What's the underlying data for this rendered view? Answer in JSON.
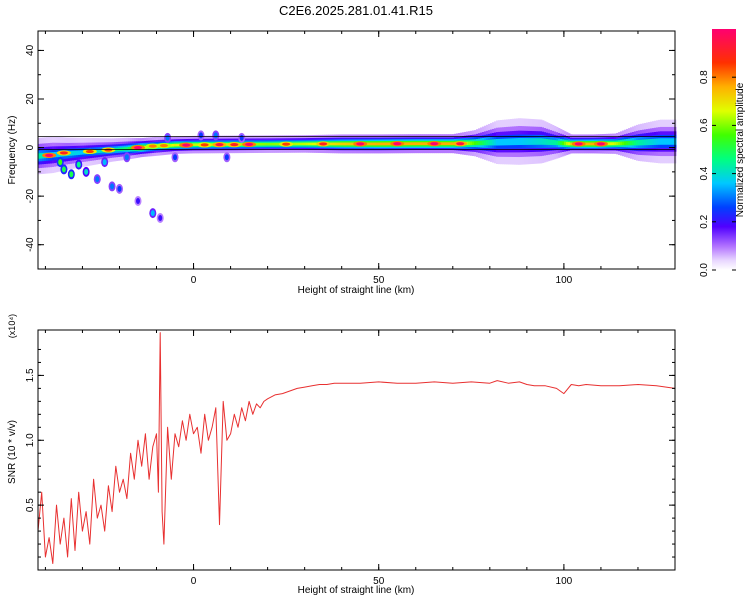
{
  "title": "C2E6.2025.281.01.41.R15",
  "chart_data": [
    {
      "type": "heatmap",
      "title": "C2E6.2025.281.01.41.R15",
      "xlabel": "Height of straight line (km)",
      "ylabel": "Frequency (Hz)",
      "xlim": [
        -42,
        130
      ],
      "ylim": [
        -50,
        48
      ],
      "xticks": [
        0,
        50,
        100
      ],
      "xtick_labels": [
        "0",
        "50",
        "100"
      ],
      "yticks": [
        40,
        20,
        0,
        -20,
        -40
      ],
      "ytick_labels": [
        "40",
        "20",
        "0",
        "-20",
        "-40"
      ],
      "ridge": [
        {
          "x": -42,
          "f": -3.5,
          "w": 2.5,
          "a": 0.55
        },
        {
          "x": -38,
          "f": -3.0,
          "w": 2.5,
          "a": 0.45
        },
        {
          "x": -34,
          "f": -2.5,
          "w": 2.2,
          "a": 0.5
        },
        {
          "x": -30,
          "f": -2.0,
          "w": 2.0,
          "a": 0.45
        },
        {
          "x": -26,
          "f": -1.5,
          "w": 1.8,
          "a": 0.5
        },
        {
          "x": -22,
          "f": -1.0,
          "w": 1.6,
          "a": 0.55
        },
        {
          "x": -18,
          "f": -0.5,
          "w": 1.5,
          "a": 0.6
        },
        {
          "x": -14,
          "f": 0.0,
          "w": 1.3,
          "a": 0.9
        },
        {
          "x": -10,
          "f": 0.5,
          "w": 1.3,
          "a": 0.7
        },
        {
          "x": -5,
          "f": 1.0,
          "w": 1.2,
          "a": 0.85
        },
        {
          "x": 0,
          "f": 1.2,
          "w": 1.2,
          "a": 0.8
        },
        {
          "x": 10,
          "f": 1.3,
          "w": 1.2,
          "a": 0.8
        },
        {
          "x": 20,
          "f": 1.4,
          "w": 1.2,
          "a": 0.75
        },
        {
          "x": 30,
          "f": 1.5,
          "w": 1.2,
          "a": 0.8
        },
        {
          "x": 40,
          "f": 1.5,
          "w": 1.3,
          "a": 0.9
        },
        {
          "x": 50,
          "f": 1.5,
          "w": 1.3,
          "a": 0.95
        },
        {
          "x": 60,
          "f": 1.6,
          "w": 1.3,
          "a": 0.95
        },
        {
          "x": 70,
          "f": 1.6,
          "w": 1.3,
          "a": 0.95
        },
        {
          "x": 76,
          "f": 1.8,
          "w": 1.8,
          "a": 0.7
        },
        {
          "x": 82,
          "f": 2.2,
          "w": 3.0,
          "a": 0.45
        },
        {
          "x": 88,
          "f": 2.5,
          "w": 3.2,
          "a": 0.45
        },
        {
          "x": 94,
          "f": 2.5,
          "w": 3.0,
          "a": 0.5
        },
        {
          "x": 98,
          "f": 2.0,
          "w": 2.2,
          "a": 0.55
        },
        {
          "x": 102,
          "f": 1.5,
          "w": 1.3,
          "a": 0.9
        },
        {
          "x": 108,
          "f": 1.5,
          "w": 1.3,
          "a": 0.95
        },
        {
          "x": 114,
          "f": 1.6,
          "w": 1.4,
          "a": 0.8
        },
        {
          "x": 120,
          "f": 2.0,
          "w": 2.5,
          "a": 0.55
        },
        {
          "x": 126,
          "f": 2.5,
          "w": 3.0,
          "a": 0.45
        },
        {
          "x": 130,
          "f": 2.5,
          "w": 3.0,
          "a": 0.45
        }
      ],
      "hot_spots": [
        {
          "x": -39,
          "f": -3.2,
          "a": 1.0
        },
        {
          "x": -35,
          "f": -2.2,
          "a": 0.9
        },
        {
          "x": -28,
          "f": -1.6,
          "a": 0.85
        },
        {
          "x": -23,
          "f": -1.0,
          "a": 0.85
        },
        {
          "x": -15,
          "f": 0.0,
          "a": 1.0
        },
        {
          "x": -11,
          "f": 0.6,
          "a": 0.8
        },
        {
          "x": -8,
          "f": 0.8,
          "a": 0.8
        },
        {
          "x": -2,
          "f": 1.0,
          "a": 1.0
        },
        {
          "x": 3,
          "f": 1.1,
          "a": 0.85
        },
        {
          "x": 7,
          "f": 1.2,
          "a": 0.95
        },
        {
          "x": 11,
          "f": 1.2,
          "a": 0.9
        },
        {
          "x": 15,
          "f": 1.3,
          "a": 1.0
        },
        {
          "x": 25,
          "f": 1.4,
          "a": 0.85
        },
        {
          "x": 35,
          "f": 1.5,
          "a": 0.9
        },
        {
          "x": 45,
          "f": 1.5,
          "a": 1.0
        },
        {
          "x": 55,
          "f": 1.6,
          "a": 1.0
        },
        {
          "x": 65,
          "f": 1.6,
          "a": 1.0
        },
        {
          "x": 72,
          "f": 1.6,
          "a": 0.95
        },
        {
          "x": 104,
          "f": 1.5,
          "a": 1.0
        },
        {
          "x": 110,
          "f": 1.5,
          "a": 1.0
        }
      ],
      "blobs": [
        {
          "x": -36,
          "f": -6,
          "a": 0.55
        },
        {
          "x": -35,
          "f": -9,
          "a": 0.5
        },
        {
          "x": -33,
          "f": -11,
          "a": 0.5
        },
        {
          "x": -31,
          "f": -7,
          "a": 0.45
        },
        {
          "x": -29,
          "f": -10,
          "a": 0.4
        },
        {
          "x": -26,
          "f": -13,
          "a": 0.3
        },
        {
          "x": -24,
          "f": -6,
          "a": 0.35
        },
        {
          "x": -22,
          "f": -16,
          "a": 0.3
        },
        {
          "x": -20,
          "f": -17,
          "a": 0.25
        },
        {
          "x": -18,
          "f": -4,
          "a": 0.3
        },
        {
          "x": -15,
          "f": -22,
          "a": 0.2
        },
        {
          "x": -11,
          "f": -27,
          "a": 0.35
        },
        {
          "x": -9,
          "f": -29,
          "a": 0.2
        },
        {
          "x": -7,
          "f": 4,
          "a": 0.3
        },
        {
          "x": -5,
          "f": -4,
          "a": 0.25
        },
        {
          "x": 2,
          "f": 5,
          "a": 0.25
        },
        {
          "x": 6,
          "f": 5,
          "a": 0.3
        },
        {
          "x": 9,
          "f": -4,
          "a": 0.25
        },
        {
          "x": 13,
          "f": 4,
          "a": 0.25
        }
      ],
      "colorbar": {
        "label": "Normalized spectral amplitude",
        "range": [
          0,
          1
        ],
        "ticks": [
          0.0,
          0.2,
          0.4,
          0.6,
          0.8
        ],
        "tick_labels": [
          "0.0",
          "0.2",
          "0.4",
          "0.6",
          "0.8"
        ],
        "stops": [
          {
            "v": 0.0,
            "color": "#ffffff"
          },
          {
            "v": 0.04,
            "color": "#e8d6ff"
          },
          {
            "v": 0.1,
            "color": "#b070ff"
          },
          {
            "v": 0.18,
            "color": "#5000ff"
          },
          {
            "v": 0.26,
            "color": "#0040ff"
          },
          {
            "v": 0.36,
            "color": "#00c8ff"
          },
          {
            "v": 0.46,
            "color": "#00ff80"
          },
          {
            "v": 0.56,
            "color": "#40ff00"
          },
          {
            "v": 0.66,
            "color": "#e0ff00"
          },
          {
            "v": 0.76,
            "color": "#ffb000"
          },
          {
            "v": 0.86,
            "color": "#ff3000"
          },
          {
            "v": 1.0,
            "color": "#ff0070"
          }
        ]
      }
    },
    {
      "type": "line",
      "xlabel": "Height of straight line (km)",
      "ylabel": "SNR (10 * v/v)",
      "y_multiplier": "(x10⁴)",
      "xlim": [
        -42,
        130
      ],
      "ylim": [
        0.0,
        1.85
      ],
      "xticks": [
        0,
        50,
        100
      ],
      "xtick_labels": [
        "0",
        "50",
        "100"
      ],
      "yticks": [
        0.5,
        1.0,
        1.5
      ],
      "ytick_labels": [
        "0.5",
        "1.0",
        "1.5"
      ],
      "color": "#e83030",
      "x": [
        -42,
        -41,
        -40,
        -39,
        -38,
        -37,
        -36,
        -35,
        -34,
        -33,
        -32,
        -31,
        -30,
        -29,
        -28,
        -27,
        -26,
        -25,
        -24,
        -23,
        -22,
        -21,
        -20,
        -19,
        -18,
        -17,
        -16,
        -15,
        -14,
        -13,
        -12,
        -11,
        -10,
        -9.5,
        -9,
        -8.5,
        -8,
        -7,
        -6,
        -5,
        -4,
        -3,
        -2,
        -1,
        0,
        1,
        2,
        3,
        4,
        5,
        6,
        7,
        8,
        9,
        10,
        11,
        12,
        13,
        14,
        15,
        16,
        17,
        18,
        19,
        20,
        22,
        24,
        26,
        28,
        30,
        32,
        34,
        36,
        38,
        40,
        45,
        50,
        55,
        60,
        65,
        70,
        75,
        80,
        82,
        85,
        88,
        90,
        92,
        95,
        98,
        100,
        102,
        104,
        106,
        110,
        115,
        120,
        125,
        130
      ],
      "y": [
        0.3,
        0.6,
        0.1,
        0.25,
        0.05,
        0.5,
        0.2,
        0.4,
        0.1,
        0.55,
        0.15,
        0.6,
        0.3,
        0.45,
        0.2,
        0.7,
        0.4,
        0.5,
        0.3,
        0.65,
        0.45,
        0.8,
        0.6,
        0.7,
        0.55,
        0.9,
        0.7,
        1.0,
        0.8,
        1.05,
        0.7,
        0.95,
        1.05,
        0.6,
        1.83,
        0.45,
        0.2,
        1.1,
        0.7,
        1.05,
        0.95,
        1.15,
        1.0,
        1.2,
        1.05,
        1.1,
        0.9,
        1.2,
        1.0,
        1.1,
        1.25,
        0.35,
        1.3,
        1.0,
        1.05,
        1.2,
        1.1,
        1.25,
        1.15,
        1.3,
        1.2,
        1.28,
        1.25,
        1.3,
        1.32,
        1.35,
        1.36,
        1.38,
        1.4,
        1.41,
        1.42,
        1.43,
        1.43,
        1.44,
        1.44,
        1.44,
        1.45,
        1.44,
        1.44,
        1.45,
        1.44,
        1.45,
        1.44,
        1.46,
        1.44,
        1.45,
        1.43,
        1.42,
        1.42,
        1.4,
        1.36,
        1.43,
        1.42,
        1.43,
        1.42,
        1.42,
        1.43,
        1.42,
        1.4
      ]
    }
  ]
}
